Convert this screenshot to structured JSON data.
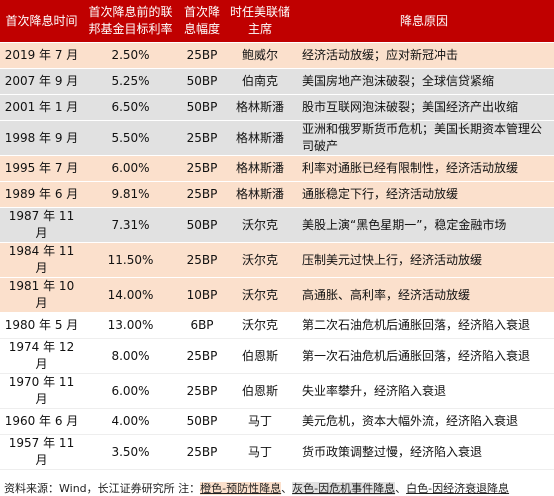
{
  "table": {
    "header": [
      "首次降息时间",
      "首次降息前的联邦基金目标利率",
      "首次降息幅度",
      "时任美联储主席",
      "降息原因"
    ],
    "rows": [
      [
        "2019 年 7 月",
        "2.50%",
        "25BP",
        "鲍威尔",
        "经济活动放缓；应对新冠冲击"
      ],
      [
        "2007 年 9 月",
        "5.25%",
        "50BP",
        "伯南克",
        "美国房地产泡沫破裂；全球信贷紧缩"
      ],
      [
        "2001 年 1 月",
        "6.50%",
        "50BP",
        "格林斯潘",
        "股市互联网泡沫破裂；美国经济产出收缩"
      ],
      [
        "1998 年 9 月",
        "5.50%",
        "25BP",
        "格林斯潘",
        "亚洲和俄罗斯货币危机；美国长期资本管理公司破产"
      ],
      [
        "1995 年 7 月",
        "6.00%",
        "25BP",
        "格林斯潘",
        "利率对通胀已经有限制性，经济活动放缓"
      ],
      [
        "1989 年 6 月",
        "9.81%",
        "25BP",
        "格林斯潘",
        "通胀稳定下行，经济活动放缓"
      ],
      [
        "1987 年 11 月",
        "7.31%",
        "50BP",
        "沃尔克",
        "美股上演“黑色星期一”，稳定金融市场"
      ],
      [
        "1984 年 11 月",
        "11.50%",
        "25BP",
        "沃尔克",
        "压制美元过快上行，经济活动放缓"
      ],
      [
        "1981 年 10 月",
        "14.00%",
        "10BP",
        "沃尔克",
        "高通胀、高利率，经济活动放缓"
      ],
      [
        "1980 年 5 月",
        "13.00%",
        "6BP",
        "沃尔克",
        "第二次石油危机后通胀回落，经济陷入衰退"
      ],
      [
        "1974 年 12 月",
        "8.00%",
        "25BP",
        "伯恩斯",
        "第一次石油危机后通胀回落，经济陷入衰退"
      ],
      [
        "1970 年 11 月",
        "6.00%",
        "25BP",
        "伯恩斯",
        "失业率攀升，经济陷入衰退"
      ],
      [
        "1960 年 6 月",
        "4.00%",
        "50BP",
        "马丁",
        "美元危机，资本大幅外流，经济陷入衰退"
      ],
      [
        "1957 年 11 月",
        "3.50%",
        "25BP",
        "马丁",
        "货币政策调整过慢，经济陷入衰退"
      ]
    ]
  },
  "footer": {
    "source": "资料来源：Wind，长江证券研究所",
    "note": "注：",
    "legend": [
      "橙色-预防性降息",
      "灰色-因危机事件降息",
      "白色-因经济衰退降息"
    ],
    "separator": "、"
  }
}
